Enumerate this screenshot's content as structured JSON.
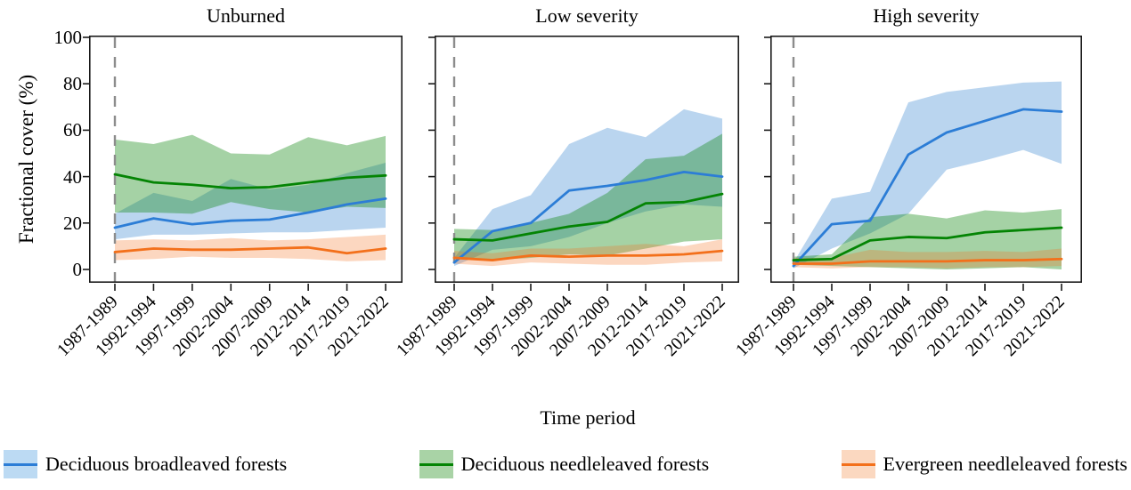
{
  "figure": {
    "y_axis_label": "Fractional cover (%)",
    "x_axis_label": "Time period",
    "frame_color": "#1a1a1a",
    "dashed_line_color": "#8c8c8c"
  },
  "legend": [
    {
      "label": "Deciduous broadleaved forests",
      "line_color": "#2C7DD6",
      "band_color": "#BCDAF3"
    },
    {
      "label": "Deciduous needleleaved forests",
      "line_color": "#048404",
      "band_color": "#A9D3A6"
    },
    {
      "label": "Evergreen needleleaved forests",
      "line_color": "#F3701B",
      "band_color": "#FBD8C0"
    }
  ],
  "chart_data": [
    {
      "type": "line",
      "title": "Unburned",
      "categories": [
        "1987-1989",
        "1992-1994",
        "1997-1999",
        "2002-2004",
        "2007-2009",
        "2012-2014",
        "2017-2019",
        "2021-2022"
      ],
      "y_ticks": [
        0,
        20,
        40,
        60,
        80,
        100
      ],
      "ylim": [
        0,
        100
      ],
      "dashed_vline_at": "1987-1989",
      "legend_position": "bottom",
      "grid": false,
      "series": [
        {
          "name": "Deciduous broadleaved forests",
          "color": "#2C7DD6",
          "band_fill": "rgba(58,135,208,0.35)",
          "values": [
            18,
            22,
            19.5,
            21,
            21.5,
            24.5,
            28,
            30.5
          ],
          "band_low": [
            13,
            15,
            15,
            15.5,
            16,
            16,
            17,
            18
          ],
          "band_high": [
            24,
            33,
            29.5,
            39,
            34.5,
            36.5,
            41.5,
            46
          ]
        },
        {
          "name": "Deciduous needleleaved forests",
          "color": "#048404",
          "band_fill": "rgba(6,130,6,0.36)",
          "values": [
            41,
            37.5,
            36.5,
            35,
            35.5,
            37.5,
            39.5,
            40.5
          ],
          "band_low": [
            24.5,
            24.5,
            24,
            29,
            26,
            24.5,
            27,
            26.5
          ],
          "band_high": [
            56,
            54,
            58,
            50,
            49.5,
            57,
            53.5,
            57.5
          ]
        },
        {
          "name": "Evergreen needleleaved forests",
          "color": "#F3701B",
          "band_fill": "rgba(243,112,27,0.28)",
          "values": [
            7.5,
            9,
            8.5,
            8.5,
            9,
            9.5,
            7,
            9
          ],
          "band_low": [
            4,
            4.5,
            5.5,
            5,
            5,
            4.5,
            3.5,
            4
          ],
          "band_high": [
            12.5,
            13,
            12.5,
            13.5,
            12.5,
            13,
            14,
            15
          ]
        }
      ]
    },
    {
      "type": "line",
      "title": "Low severity",
      "categories": [
        "1987-1989",
        "1992-1994",
        "1997-1999",
        "2002-2004",
        "2007-2009",
        "2012-2014",
        "2017-2019",
        "2021-2022"
      ],
      "y_ticks": [
        0,
        20,
        40,
        60,
        80,
        100
      ],
      "ylim": [
        0,
        100
      ],
      "dashed_vline_at": "1987-1989",
      "legend_position": "bottom",
      "grid": false,
      "series": [
        {
          "name": "Deciduous broadleaved forests",
          "color": "#2C7DD6",
          "band_fill": "rgba(58,135,208,0.35)",
          "values": [
            3,
            16.5,
            20,
            34,
            36,
            38.5,
            42,
            40
          ],
          "band_low": [
            1.5,
            8.5,
            10,
            14,
            20,
            25,
            28,
            27
          ],
          "band_high": [
            5,
            26,
            32,
            54,
            61,
            57,
            69,
            65
          ]
        },
        {
          "name": "Deciduous needleleaved forests",
          "color": "#048404",
          "band_fill": "rgba(6,130,6,0.36)",
          "values": [
            13,
            12.5,
            15.5,
            18.5,
            20.5,
            28.5,
            29,
            32.5
          ],
          "band_low": [
            5.5,
            4,
            5,
            6.5,
            6,
            9,
            12,
            13
          ],
          "band_high": [
            17.5,
            17,
            20,
            24,
            33,
            47.5,
            49,
            58.5
          ]
        },
        {
          "name": "Evergreen needleleaved forests",
          "color": "#F3701B",
          "band_fill": "rgba(243,112,27,0.28)",
          "values": [
            5,
            4,
            6,
            5.5,
            6,
            6,
            6.5,
            8
          ],
          "band_low": [
            2.5,
            1.5,
            3,
            2.5,
            2,
            2,
            3,
            3.5
          ],
          "band_high": [
            8,
            7,
            9,
            9,
            10,
            11,
            10,
            13
          ]
        }
      ]
    },
    {
      "type": "line",
      "title": "High severity",
      "categories": [
        "1987-1989",
        "1992-1994",
        "1997-1999",
        "2002-2004",
        "2007-2009",
        "2012-2014",
        "2017-2019",
        "2021-2022"
      ],
      "y_ticks": [
        0,
        20,
        40,
        60,
        80,
        100
      ],
      "ylim": [
        0,
        100
      ],
      "dashed_vline_at": "1987-1989",
      "legend_position": "bottom",
      "grid": false,
      "series": [
        {
          "name": "Deciduous broadleaved forests",
          "color": "#2C7DD6",
          "band_fill": "rgba(58,135,208,0.35)",
          "values": [
            1.5,
            19.5,
            21,
            49.5,
            59,
            64,
            69,
            68
          ],
          "band_low": [
            0.5,
            9,
            15.5,
            24,
            43,
            47,
            51.5,
            45.5
          ],
          "band_high": [
            3,
            30.5,
            33.5,
            72,
            76.5,
            78.5,
            80.5,
            81
          ]
        },
        {
          "name": "Deciduous needleleaved forests",
          "color": "#048404",
          "band_fill": "rgba(6,130,6,0.36)",
          "values": [
            4,
            4.5,
            12.5,
            14,
            13.5,
            16,
            17,
            18
          ],
          "band_low": [
            2,
            1.5,
            1,
            0.5,
            0,
            0.5,
            1,
            0
          ],
          "band_high": [
            5.5,
            6.5,
            22.5,
            24,
            22,
            25.5,
            24.5,
            26
          ]
        },
        {
          "name": "Evergreen needleleaved forests",
          "color": "#F3701B",
          "band_fill": "rgba(243,112,27,0.28)",
          "values": [
            2.5,
            2.5,
            3.5,
            3.5,
            3.5,
            4,
            4,
            4.5
          ],
          "band_low": [
            1,
            0.5,
            1,
            1,
            0.5,
            1,
            1,
            1.5
          ],
          "band_high": [
            5,
            5,
            8.5,
            7.5,
            7.5,
            8,
            7.5,
            9
          ]
        }
      ]
    }
  ]
}
